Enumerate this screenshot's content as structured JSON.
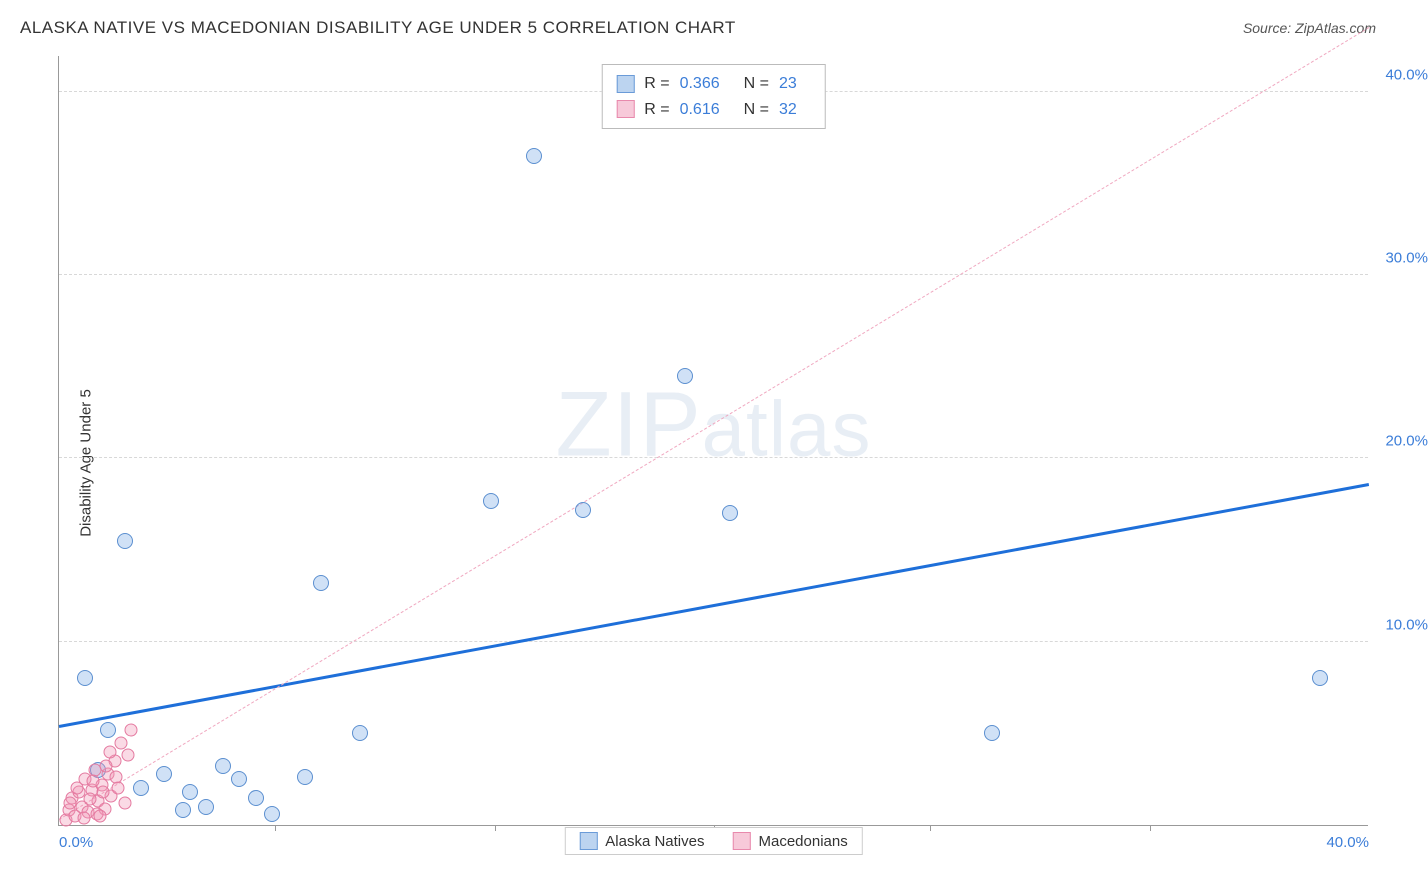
{
  "title": "ALASKA NATIVE VS MACEDONIAN DISABILITY AGE UNDER 5 CORRELATION CHART",
  "source": "Source: ZipAtlas.com",
  "ylabel": "Disability Age Under 5",
  "watermark": "ZIPatlas",
  "chart": {
    "type": "scatter",
    "xlim": [
      0,
      40
    ],
    "ylim": [
      0,
      42
    ],
    "xticks": [
      {
        "v": 0,
        "l": "0.0%"
      },
      {
        "v": 40,
        "l": "40.0%"
      }
    ],
    "xtick_marks": [
      6.6,
      13.3,
      20,
      26.6,
      33.3
    ],
    "yticks": [
      {
        "v": 10,
        "l": "10.0%"
      },
      {
        "v": 20,
        "l": "20.0%"
      },
      {
        "v": 30,
        "l": "30.0%"
      },
      {
        "v": 40,
        "l": "40.0%"
      }
    ],
    "grid_color": "#d8d8d8",
    "background_color": "#ffffff",
    "axis_color": "#999999",
    "tick_color": "#3b7dd8"
  },
  "series": [
    {
      "name": "Alaska Natives",
      "marker_fill": "rgba(120,170,230,0.35)",
      "marker_stroke": "#5b8fd0",
      "marker_size": 16,
      "swatch_fill": "#bcd4f0",
      "swatch_border": "#6a9bd8",
      "trend": {
        "color": "#1e6fd9",
        "width": 3,
        "dash": "solid",
        "y0": 5.3,
        "y1": 18.5
      },
      "R": "0.366",
      "N": "23",
      "points": [
        [
          0.8,
          8.0
        ],
        [
          1.5,
          5.2
        ],
        [
          2.0,
          15.5
        ],
        [
          4.0,
          1.8
        ],
        [
          4.5,
          1.0
        ],
        [
          5.5,
          2.5
        ],
        [
          6.0,
          1.5
        ],
        [
          6.5,
          0.6
        ],
        [
          7.5,
          2.6
        ],
        [
          8.0,
          13.2
        ],
        [
          9.2,
          5.0
        ],
        [
          13.2,
          17.7
        ],
        [
          14.5,
          36.5
        ],
        [
          16.0,
          17.2
        ],
        [
          19.1,
          24.5
        ],
        [
          20.5,
          17.0
        ],
        [
          28.5,
          5.0
        ],
        [
          38.5,
          8.0
        ],
        [
          3.2,
          2.8
        ],
        [
          3.8,
          0.8
        ],
        [
          5.0,
          3.2
        ],
        [
          1.2,
          3.0
        ],
        [
          2.5,
          2.0
        ]
      ]
    },
    {
      "name": "Macedonians",
      "marker_fill": "rgba(240,150,180,0.35)",
      "marker_stroke": "#e47aa0",
      "marker_size": 13,
      "swatch_fill": "#f7c9d9",
      "swatch_border": "#e889ac",
      "trend": {
        "color": "#f0a8c0",
        "width": 1,
        "dash": "6,5",
        "y0": 0.3,
        "y1": 43.5
      },
      "R": "0.616",
      "N": "32",
      "points": [
        [
          0.2,
          0.3
        ],
        [
          0.3,
          0.8
        ],
        [
          0.4,
          1.5
        ],
        [
          0.5,
          0.5
        ],
        [
          0.6,
          1.8
        ],
        [
          0.7,
          1.0
        ],
        [
          0.8,
          2.5
        ],
        [
          0.9,
          0.7
        ],
        [
          1.0,
          1.9
        ],
        [
          1.1,
          3.0
        ],
        [
          1.2,
          1.3
        ],
        [
          1.3,
          2.2
        ],
        [
          1.4,
          0.9
        ],
        [
          1.5,
          2.8
        ],
        [
          1.6,
          1.6
        ],
        [
          1.7,
          3.5
        ],
        [
          1.8,
          2.0
        ],
        [
          1.9,
          4.5
        ],
        [
          2.0,
          1.2
        ],
        [
          2.1,
          3.8
        ],
        [
          2.2,
          5.2
        ],
        [
          0.35,
          1.2
        ],
        [
          0.55,
          2.0
        ],
        [
          0.75,
          0.4
        ],
        [
          0.95,
          1.4
        ],
        [
          1.15,
          0.6
        ],
        [
          1.35,
          1.8
        ],
        [
          1.55,
          4.0
        ],
        [
          1.75,
          2.6
        ],
        [
          1.05,
          2.4
        ],
        [
          1.25,
          0.5
        ],
        [
          1.45,
          3.2
        ]
      ]
    }
  ],
  "legend": {
    "items": [
      "Alaska Natives",
      "Macedonians"
    ]
  }
}
